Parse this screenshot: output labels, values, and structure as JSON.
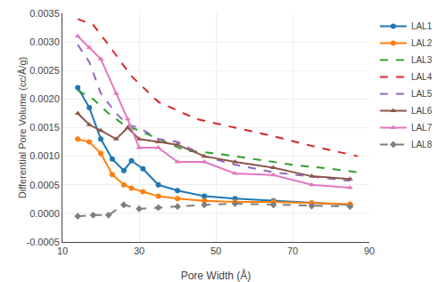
{
  "chart_data": {
    "type": "line",
    "xlabel": "Pore Width (Å)",
    "ylabel": "Differential Pore Volume (cc/Å/g)",
    "xlim": [
      10,
      90
    ],
    "xticks": [
      10,
      30,
      50,
      70,
      90
    ],
    "ylim": [
      -0.0005,
      0.0035
    ],
    "yticks": [
      {
        "value": -0.0005,
        "label": "-0.0005"
      },
      {
        "value": 0.0,
        "label": "0.0000"
      },
      {
        "value": 0.0005,
        "label": "0.0005"
      },
      {
        "value": 0.001,
        "label": "0.0010"
      },
      {
        "value": 0.0015,
        "label": "0.0015"
      },
      {
        "value": 0.002,
        "label": "0.0020"
      },
      {
        "value": 0.0025,
        "label": "0.0025"
      },
      {
        "value": 0.003,
        "label": "0.0030"
      },
      {
        "value": 0.0035,
        "label": "0.0035"
      }
    ],
    "grid": true,
    "legend": "upper right",
    "series": [
      {
        "name": "LAL1",
        "line_style": "solid",
        "marker": "circle",
        "x": [
          14,
          17,
          20,
          23,
          26,
          28,
          31,
          35,
          40,
          47,
          55,
          65,
          75,
          85
        ],
        "values": [
          0.0022,
          0.00185,
          0.0013,
          0.00095,
          0.00075,
          0.00092,
          0.00078,
          0.0005,
          0.0004,
          0.0003,
          0.00026,
          0.00022,
          0.00018,
          0.00015
        ]
      },
      {
        "name": "LAL2",
        "line_style": "solid",
        "marker": "circle",
        "x": [
          14,
          17,
          20,
          23,
          26,
          28,
          31,
          35,
          40,
          47,
          55,
          65,
          75,
          85
        ],
        "values": [
          0.0013,
          0.00125,
          0.00105,
          0.00068,
          0.0005,
          0.00044,
          0.00038,
          0.0003,
          0.00026,
          0.00022,
          0.0002,
          0.0002,
          0.00018,
          0.00016
        ]
      },
      {
        "name": "LAL3",
        "line_style": "dashed",
        "marker": null,
        "x": [
          14,
          18,
          22,
          26,
          30,
          35,
          42,
          50,
          60,
          70,
          80,
          87
        ],
        "values": [
          0.00215,
          0.002,
          0.00175,
          0.00155,
          0.00145,
          0.0013,
          0.0011,
          0.00105,
          0.00095,
          0.00085,
          0.00078,
          0.00072
        ]
      },
      {
        "name": "LAL4",
        "line_style": "dashed",
        "marker": null,
        "x": [
          14,
          18,
          22,
          28,
          35,
          45,
          55,
          65,
          75,
          87
        ],
        "values": [
          0.0034,
          0.0033,
          0.00295,
          0.0024,
          0.00195,
          0.00165,
          0.0015,
          0.00135,
          0.00118,
          0.001
        ]
      },
      {
        "name": "LAL5",
        "line_style": "dashed",
        "marker": null,
        "x": [
          14,
          17,
          20,
          24,
          27,
          30,
          35,
          40,
          47,
          55,
          65,
          75,
          85
        ],
        "values": [
          0.00295,
          0.00265,
          0.0021,
          0.00175,
          0.00155,
          0.0015,
          0.0013,
          0.00125,
          0.001,
          0.00085,
          0.00072,
          0.00065,
          0.00057
        ]
      },
      {
        "name": "LAL6",
        "line_style": "solid",
        "marker": "triangle-up",
        "x": [
          14,
          17,
          20,
          24,
          27,
          30,
          35,
          40,
          47,
          55,
          65,
          75,
          85
        ],
        "values": [
          0.00175,
          0.00155,
          0.00145,
          0.0013,
          0.0015,
          0.0013,
          0.00125,
          0.0012,
          0.001,
          0.0009,
          0.0008,
          0.00065,
          0.0006
        ]
      },
      {
        "name": "LAL7",
        "line_style": "solid",
        "marker": "triangle-up",
        "x": [
          14,
          17,
          20,
          24,
          27,
          30,
          35,
          40,
          47,
          55,
          65,
          75,
          85
        ],
        "values": [
          0.0031,
          0.0029,
          0.0027,
          0.0021,
          0.00165,
          0.00115,
          0.00115,
          0.0009,
          0.0009,
          0.0007,
          0.00067,
          0.0005,
          0.00045
        ]
      },
      {
        "name": "LAL8",
        "line_style": "dashed",
        "marker": "diamond",
        "x": [
          14,
          18,
          22,
          26,
          30,
          35,
          40,
          47,
          55,
          65,
          75,
          85
        ],
        "values": [
          -5e-05,
          -3e-05,
          -3e-05,
          0.00015,
          8e-05,
          0.0001,
          0.00012,
          0.00015,
          0.00017,
          0.00015,
          0.00013,
          0.00012
        ]
      }
    ]
  }
}
